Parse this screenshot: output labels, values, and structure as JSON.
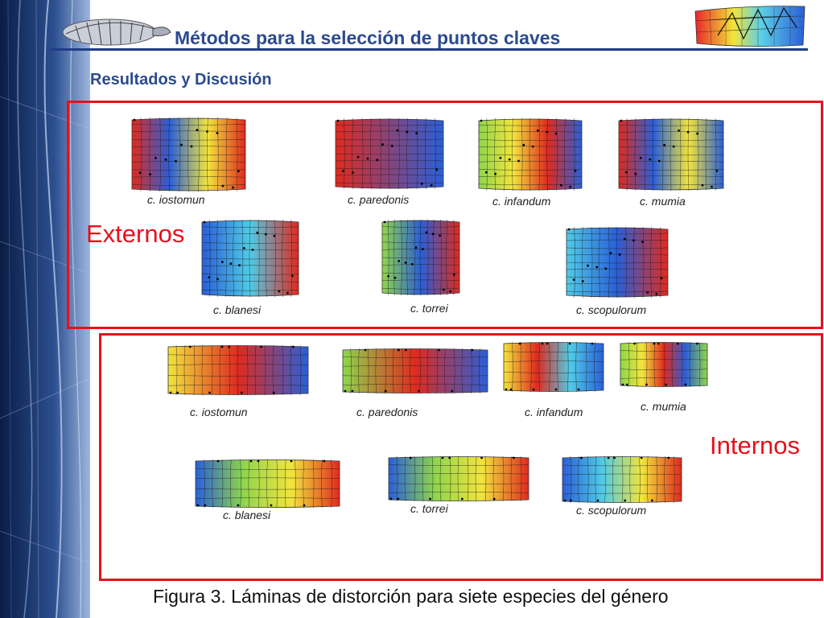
{
  "header": {
    "title": "Métodos para la selección de puntos claves",
    "subtitle": "Resultados y Discusión"
  },
  "groups": {
    "external": {
      "label": "Externos",
      "species": [
        "c. iostomun",
        "c. paredonis",
        "c. infandum",
        "c. mumia",
        "c. blanesi",
        "c. torrei",
        "c. scopulorum"
      ]
    },
    "internal": {
      "label": "Internos",
      "species": [
        "c. iostomun",
        "c. paredonis",
        "c. infandum",
        "c. mumia",
        "c. blanesi",
        "c. torrei",
        "c. scopulorum"
      ]
    }
  },
  "caption": "Figura 3. Láminas de distorción para siete especies del género",
  "colors": {
    "title_blue": "#2b4a8f",
    "frame_red": "#e8101a",
    "band_dark": "#0e2350",
    "band_light": "#6f92c9"
  },
  "icons": [
    "snail-shell-logo-icon",
    "warp-grid-logo-icon"
  ]
}
